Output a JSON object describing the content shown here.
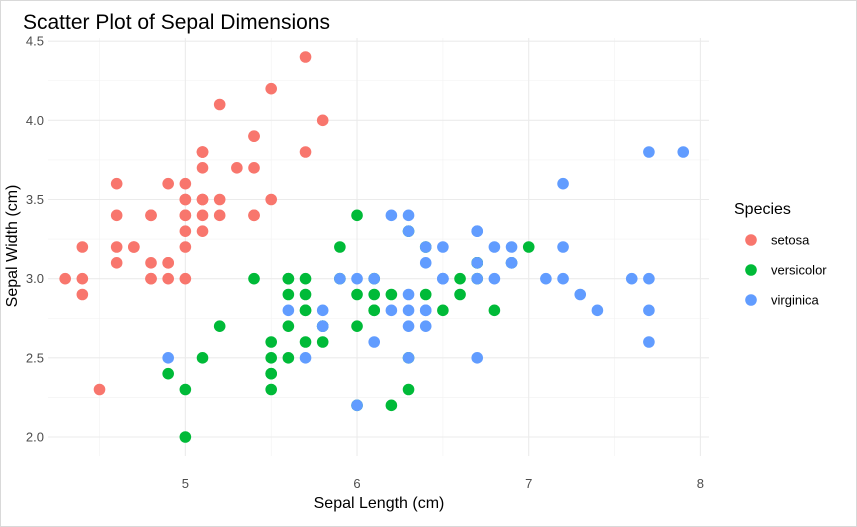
{
  "chart_data": {
    "type": "scatter",
    "title": "Scatter Plot of Sepal Dimensions",
    "xlabel": "Sepal Length (cm)",
    "ylabel": "Sepal Width (cm)",
    "xlim": [
      4.2,
      8.05
    ],
    "ylim": [
      1.88,
      4.52
    ],
    "x_ticks": [
      5,
      6,
      7,
      8
    ],
    "y_ticks": [
      2.0,
      2.5,
      3.0,
      3.5,
      4.0,
      4.5
    ],
    "x_tick_labels": [
      "5",
      "6",
      "7",
      "8"
    ],
    "y_tick_labels": [
      "2.0",
      "2.5",
      "3.0",
      "3.5",
      "4.0",
      "4.5"
    ],
    "grid": true,
    "legend": {
      "title": "Species",
      "position": "right"
    },
    "series": [
      {
        "name": "setosa",
        "color": "#F8766D",
        "points": [
          [
            5.1,
            3.5
          ],
          [
            4.9,
            3.0
          ],
          [
            4.7,
            3.2
          ],
          [
            4.6,
            3.1
          ],
          [
            5.0,
            3.6
          ],
          [
            5.4,
            3.9
          ],
          [
            4.6,
            3.4
          ],
          [
            5.0,
            3.4
          ],
          [
            4.4,
            2.9
          ],
          [
            4.9,
            3.1
          ],
          [
            5.4,
            3.7
          ],
          [
            4.8,
            3.4
          ],
          [
            4.8,
            3.0
          ],
          [
            4.3,
            3.0
          ],
          [
            5.8,
            4.0
          ],
          [
            5.7,
            4.4
          ],
          [
            5.4,
            3.9
          ],
          [
            5.1,
            3.5
          ],
          [
            5.7,
            3.8
          ],
          [
            5.1,
            3.8
          ],
          [
            5.4,
            3.4
          ],
          [
            5.1,
            3.7
          ],
          [
            4.6,
            3.6
          ],
          [
            5.1,
            3.3
          ],
          [
            4.8,
            3.4
          ],
          [
            5.0,
            3.0
          ],
          [
            5.0,
            3.4
          ],
          [
            5.2,
            3.5
          ],
          [
            5.2,
            3.4
          ],
          [
            4.7,
            3.2
          ],
          [
            4.8,
            3.1
          ],
          [
            5.4,
            3.4
          ],
          [
            5.2,
            4.1
          ],
          [
            5.5,
            4.2
          ],
          [
            4.9,
            3.1
          ],
          [
            5.0,
            3.2
          ],
          [
            5.5,
            3.5
          ],
          [
            4.9,
            3.6
          ],
          [
            4.4,
            3.0
          ],
          [
            5.1,
            3.4
          ],
          [
            5.0,
            3.5
          ],
          [
            4.5,
            2.3
          ],
          [
            4.4,
            3.2
          ],
          [
            5.0,
            3.5
          ],
          [
            5.1,
            3.8
          ],
          [
            4.8,
            3.0
          ],
          [
            5.1,
            3.8
          ],
          [
            4.6,
            3.2
          ],
          [
            5.3,
            3.7
          ],
          [
            5.0,
            3.3
          ]
        ]
      },
      {
        "name": "versicolor",
        "color": "#00BA38",
        "points": [
          [
            7.0,
            3.2
          ],
          [
            6.4,
            3.2
          ],
          [
            6.9,
            3.1
          ],
          [
            5.5,
            2.3
          ],
          [
            6.5,
            2.8
          ],
          [
            5.7,
            2.8
          ],
          [
            6.3,
            3.3
          ],
          [
            4.9,
            2.4
          ],
          [
            6.6,
            2.9
          ],
          [
            5.2,
            2.7
          ],
          [
            5.0,
            2.0
          ],
          [
            5.9,
            3.0
          ],
          [
            6.0,
            2.2
          ],
          [
            6.1,
            2.9
          ],
          [
            5.6,
            2.9
          ],
          [
            6.7,
            3.1
          ],
          [
            5.6,
            3.0
          ],
          [
            5.8,
            2.7
          ],
          [
            6.2,
            2.2
          ],
          [
            5.6,
            2.5
          ],
          [
            5.9,
            3.2
          ],
          [
            6.1,
            2.8
          ],
          [
            6.3,
            2.5
          ],
          [
            6.1,
            2.8
          ],
          [
            6.4,
            2.9
          ],
          [
            6.6,
            3.0
          ],
          [
            6.8,
            2.8
          ],
          [
            6.7,
            3.0
          ],
          [
            6.0,
            2.9
          ],
          [
            5.7,
            2.6
          ],
          [
            5.5,
            2.4
          ],
          [
            5.5,
            2.4
          ],
          [
            5.8,
            2.7
          ],
          [
            6.0,
            2.7
          ],
          [
            5.4,
            3.0
          ],
          [
            6.0,
            3.4
          ],
          [
            6.7,
            3.1
          ],
          [
            6.3,
            2.3
          ],
          [
            5.6,
            3.0
          ],
          [
            5.5,
            2.5
          ],
          [
            5.5,
            2.6
          ],
          [
            6.1,
            3.0
          ],
          [
            5.8,
            2.6
          ],
          [
            5.0,
            2.3
          ],
          [
            5.6,
            2.7
          ],
          [
            5.7,
            3.0
          ],
          [
            5.7,
            2.9
          ],
          [
            6.2,
            2.9
          ],
          [
            5.1,
            2.5
          ],
          [
            5.7,
            2.8
          ]
        ]
      },
      {
        "name": "virginica",
        "color": "#619CFF",
        "points": [
          [
            6.3,
            3.3
          ],
          [
            5.8,
            2.7
          ],
          [
            7.1,
            3.0
          ],
          [
            6.3,
            2.9
          ],
          [
            6.5,
            3.0
          ],
          [
            7.6,
            3.0
          ],
          [
            4.9,
            2.5
          ],
          [
            7.3,
            2.9
          ],
          [
            6.7,
            2.5
          ],
          [
            7.2,
            3.6
          ],
          [
            6.5,
            3.2
          ],
          [
            6.4,
            2.7
          ],
          [
            6.8,
            3.0
          ],
          [
            5.7,
            2.5
          ],
          [
            5.8,
            2.8
          ],
          [
            6.4,
            3.2
          ],
          [
            6.5,
            3.0
          ],
          [
            7.7,
            3.8
          ],
          [
            7.7,
            2.6
          ],
          [
            6.0,
            2.2
          ],
          [
            6.9,
            3.2
          ],
          [
            5.6,
            2.8
          ],
          [
            7.7,
            2.8
          ],
          [
            6.3,
            2.7
          ],
          [
            6.7,
            3.3
          ],
          [
            7.2,
            3.2
          ],
          [
            6.2,
            2.8
          ],
          [
            6.1,
            3.0
          ],
          [
            6.4,
            2.8
          ],
          [
            7.2,
            3.0
          ],
          [
            7.4,
            2.8
          ],
          [
            7.9,
            3.8
          ],
          [
            6.4,
            2.8
          ],
          [
            6.3,
            2.8
          ],
          [
            6.1,
            2.6
          ],
          [
            7.7,
            3.0
          ],
          [
            6.3,
            3.4
          ],
          [
            6.4,
            3.1
          ],
          [
            6.0,
            3.0
          ],
          [
            6.9,
            3.1
          ],
          [
            6.7,
            3.1
          ],
          [
            6.9,
            3.1
          ],
          [
            5.8,
            2.7
          ],
          [
            6.8,
            3.2
          ],
          [
            6.7,
            3.3
          ],
          [
            6.7,
            3.0
          ],
          [
            6.3,
            2.5
          ],
          [
            6.5,
            3.0
          ],
          [
            6.2,
            3.4
          ],
          [
            5.9,
            3.0
          ]
        ]
      }
    ]
  }
}
